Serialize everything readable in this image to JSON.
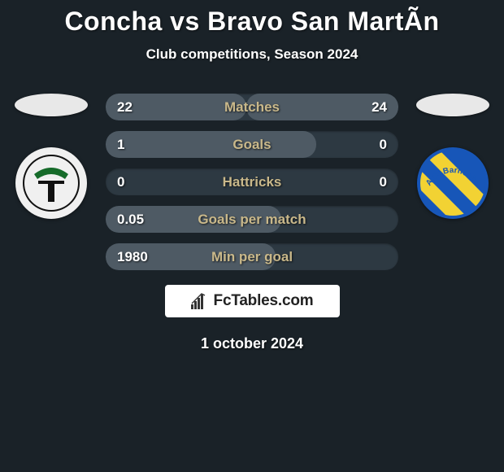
{
  "header": {
    "title": "Concha vs Bravo San MartÃ­n",
    "subtitle": "Club competitions, Season 2024"
  },
  "players": {
    "left_oval_color": "#e8e8e8",
    "right_oval_color": "#e8e8e8"
  },
  "clubs": {
    "left": {
      "bg_color": "#f0f0f0",
      "letter": "T",
      "letter_bg": "#111111",
      "accent_top": "#166b2a",
      "border_color": "#111111"
    },
    "right": {
      "bg_color": "#1756b8",
      "text": "A.C. Barneche",
      "stripe_color": "#f2d233",
      "text_color": "#1756b8"
    }
  },
  "stats": {
    "track_color": "#2d3942",
    "fill_left_color": "#4e5a64",
    "fill_right_color": "#4e5a64",
    "label_color": "#c9b88a",
    "rows": [
      {
        "left": "22",
        "label": "Matches",
        "right": "24",
        "left_pct": 48,
        "right_pct": 52
      },
      {
        "left": "1",
        "label": "Goals",
        "right": "0",
        "left_pct": 72,
        "right_pct": 0
      },
      {
        "left": "0",
        "label": "Hattricks",
        "right": "0",
        "left_pct": 0,
        "right_pct": 0
      },
      {
        "left": "0.05",
        "label": "Goals per match",
        "right": "",
        "left_pct": 60,
        "right_pct": 0
      },
      {
        "left": "1980",
        "label": "Min per goal",
        "right": "",
        "left_pct": 58,
        "right_pct": 0
      }
    ]
  },
  "branding": {
    "text": "FcTables.com",
    "icon_color": "#333333"
  },
  "footer": {
    "date": "1 october 2024"
  }
}
